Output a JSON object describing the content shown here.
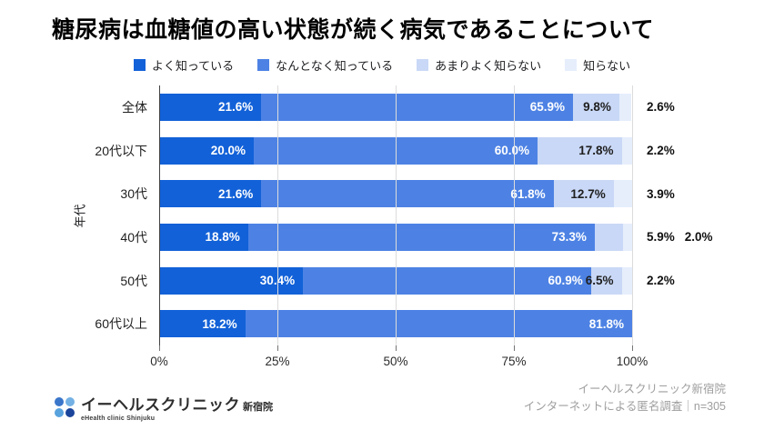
{
  "title": "糖尿病は血糖値の高い状態が続く病気であることについて",
  "chart_data": {
    "type": "bar",
    "variant": "horizontal-stacked",
    "title": "糖尿病は血糖値の高い状態が続く病気であることについて",
    "ylabel": "年代",
    "xlim": [
      0,
      100
    ],
    "x_ticks": [
      {
        "label": "0%",
        "value": 0
      },
      {
        "label": "25%",
        "value": 25
      },
      {
        "label": "50%",
        "value": 50
      },
      {
        "label": "75%",
        "value": 75
      },
      {
        "label": "100%",
        "value": 100
      }
    ],
    "grid": true,
    "legend_position": "top",
    "inside_label_min_value": 6,
    "categories": [
      "全体",
      "20代以下",
      "30代",
      "40代",
      "50代",
      "60代以上"
    ],
    "series": [
      {
        "name": "よく知っている",
        "color": "#1261d8",
        "label_color": "#ffffff",
        "values": [
          21.6,
          20.0,
          21.6,
          18.8,
          30.4,
          18.2
        ]
      },
      {
        "name": "なんとなく知っている",
        "color": "#4d82e4",
        "label_color": "#ffffff",
        "values": [
          65.9,
          60.0,
          61.8,
          73.3,
          60.9,
          81.8
        ]
      },
      {
        "name": "あまりよく知らない",
        "color": "#c9d8f6",
        "label_color": "#1f1f1f",
        "values": [
          9.8,
          17.8,
          12.7,
          5.9,
          6.5,
          0
        ]
      },
      {
        "name": "知らない",
        "color": "#e6eefc",
        "label_color": "#1f1f1f",
        "values": [
          2.6,
          2.2,
          3.9,
          2.0,
          2.2,
          0
        ]
      }
    ]
  },
  "footer": {
    "logo": {
      "name": "イーヘルスクリニック",
      "branch": "新宿院",
      "tagline": "eHealth clinic Shinjuku",
      "dot_colors": [
        "#3a76ca",
        "#74b1e4",
        "#58a2de",
        "#1b459b"
      ]
    },
    "source_line1": "イーヘルスクリニック新宿院",
    "source_line2": "インターネットによる匿名調査｜n=305"
  }
}
